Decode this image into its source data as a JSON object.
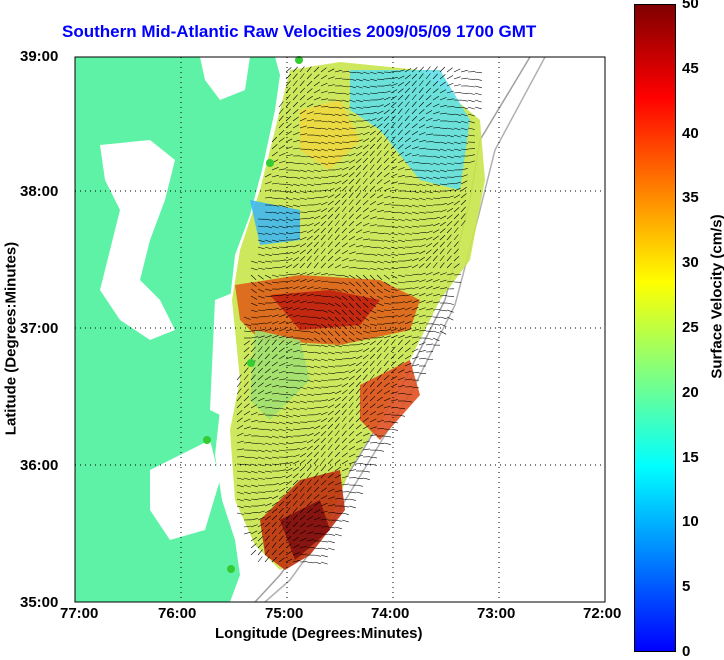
{
  "title": "Southern Mid-Atlantic Raw Velocities 2009/05/09 1700 GMT",
  "xlabel": "Longitude (Degrees:Minutes)",
  "ylabel": "Latitude (Degrees:Minutes)",
  "colorbar": {
    "label": "Surface Velocity (cm/s)",
    "min": 0,
    "max": 50,
    "ticks": [
      "0",
      "5",
      "10",
      "15",
      "20",
      "25",
      "30",
      "35",
      "40",
      "45",
      "50"
    ],
    "colors": [
      "#0000ff",
      "#0080ff",
      "#00ffff",
      "#80ff80",
      "#ffff00",
      "#ff8000",
      "#ff0000",
      "#800000"
    ]
  },
  "axes": {
    "x_ticks": [
      "77:00",
      "76:00",
      "75:00",
      "74:00",
      "73:00",
      "72:00"
    ],
    "y_ticks": [
      "39:00",
      "38:00",
      "37:00",
      "36:00",
      "35:00"
    ]
  },
  "colors": {
    "land": "#5ef2a6",
    "water": "#ffffff",
    "title": "#0000ff",
    "station": "#33cc33"
  }
}
